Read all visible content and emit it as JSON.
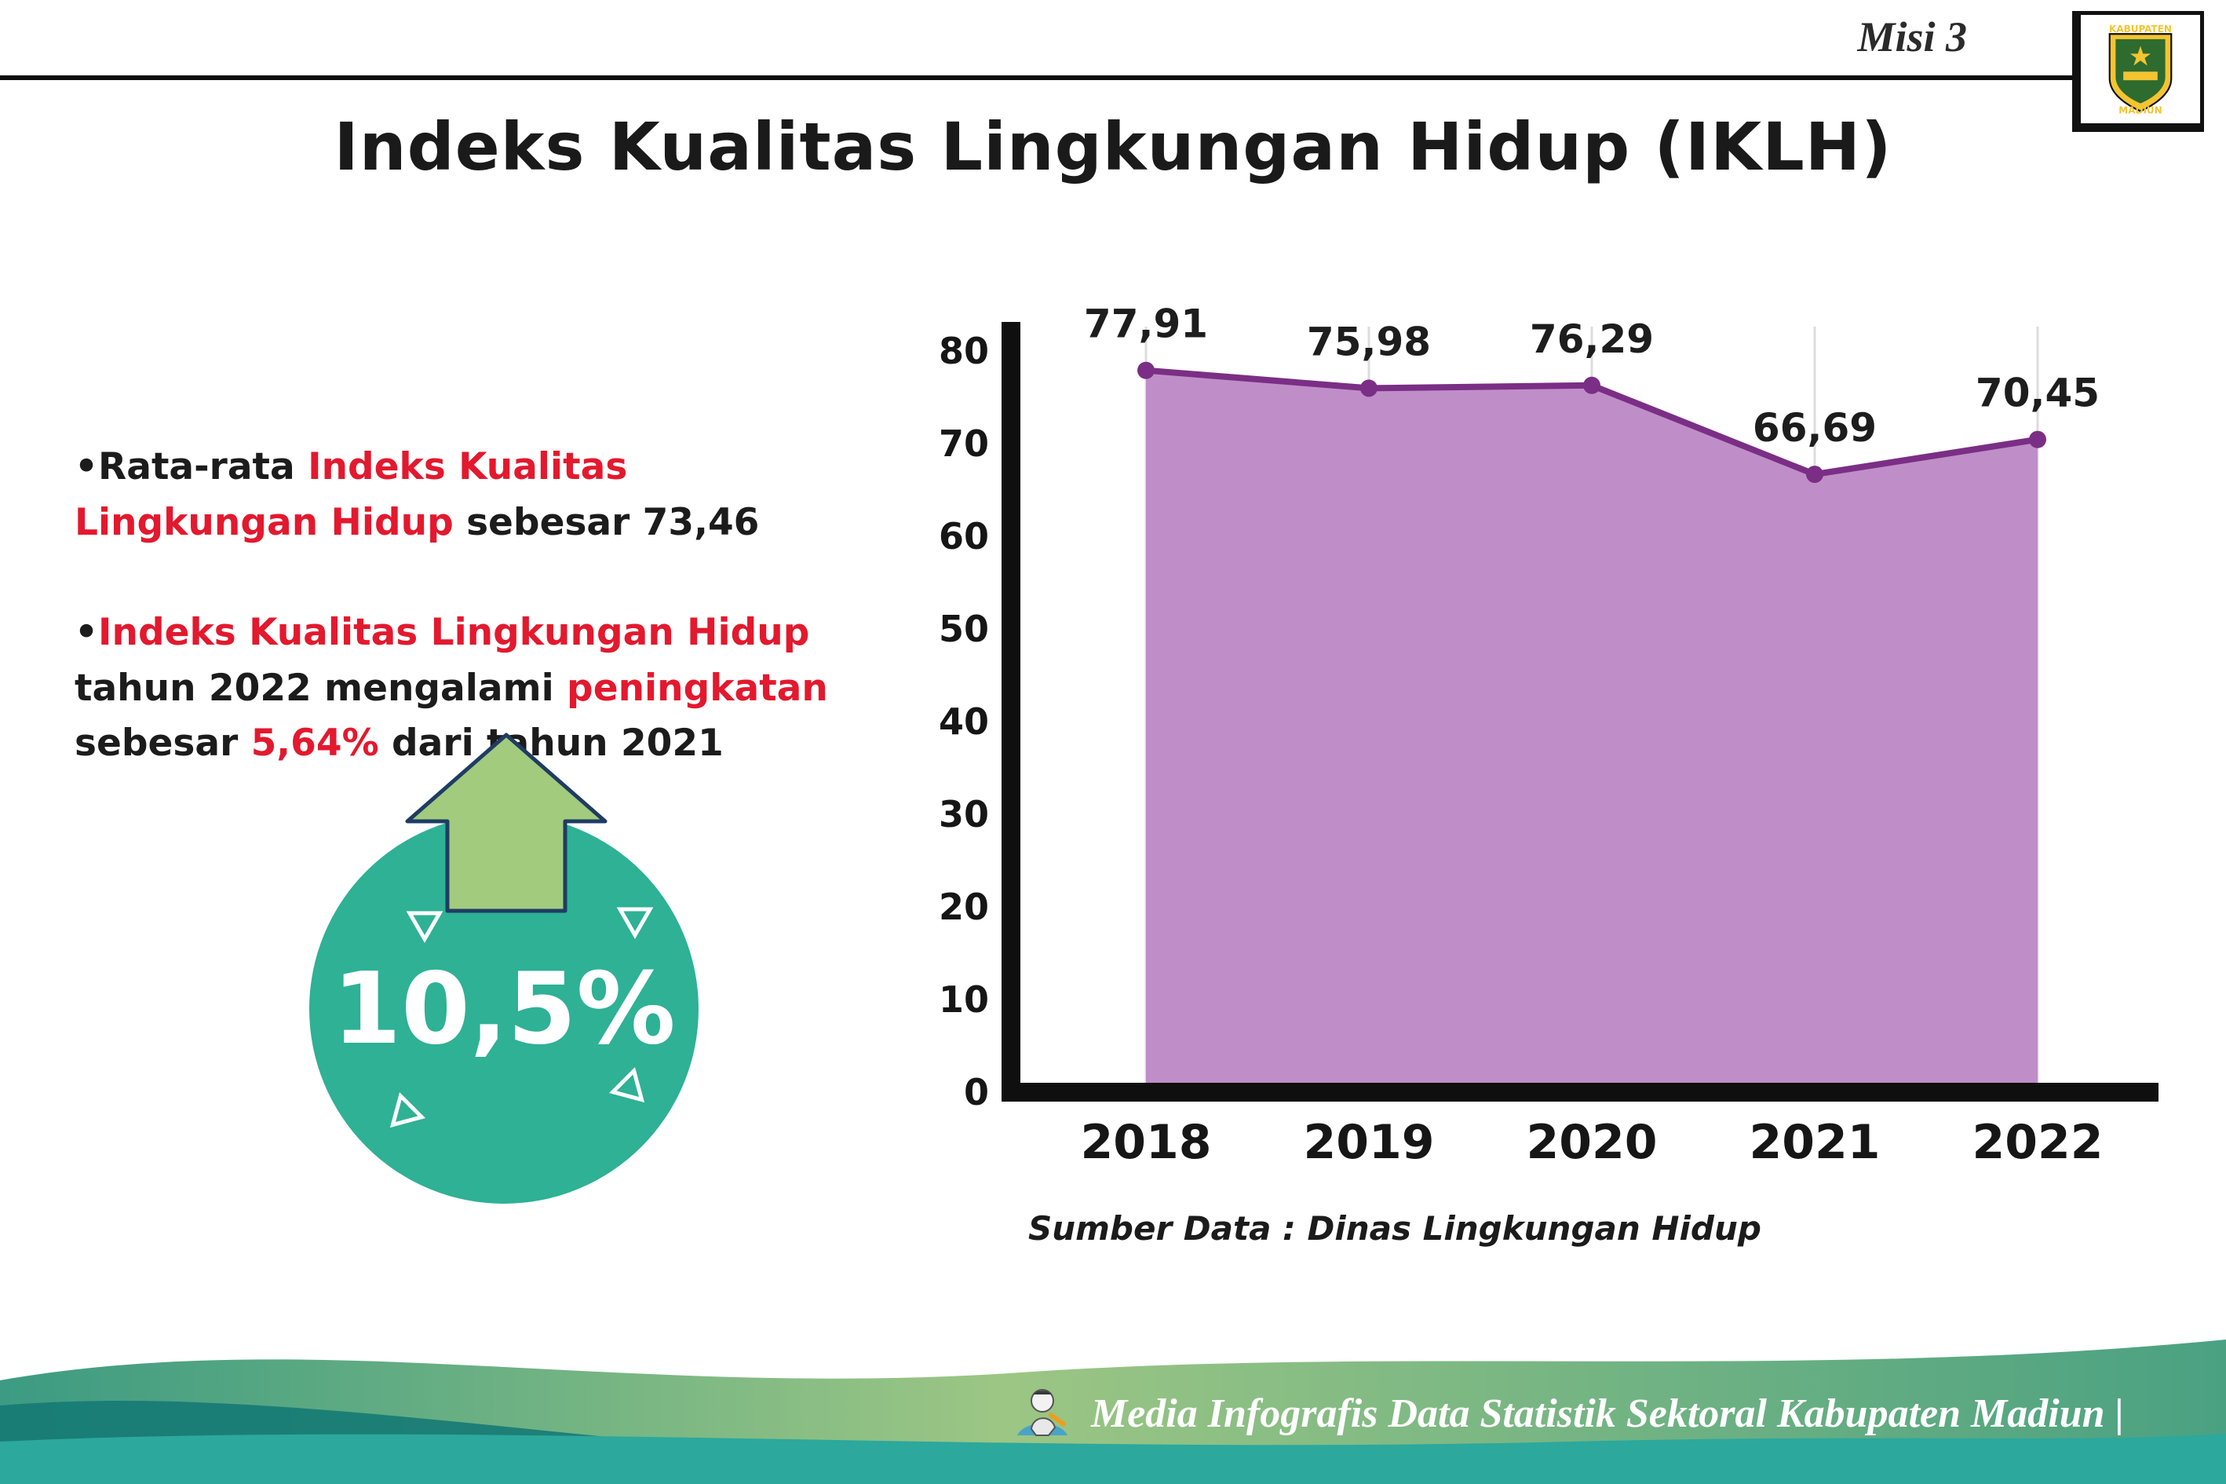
{
  "colors": {
    "accent_red": "#e3192e",
    "badge_teal": "#2eb195",
    "arrow_green": "#a2cb7e",
    "footer_teal": "#2ca89d",
    "footer_dark_teal": "#157a74"
  },
  "header": {
    "misi": "Misi 3",
    "title": "Indeks Kualitas Lingkungan Hidup (IKLH)",
    "logo_text_top": "KABUPATEN",
    "logo_text_bottom": "MADIUN"
  },
  "bullets": {
    "marker": "•",
    "b1": {
      "black1": "Rata-rata ",
      "red1": "Indeks Kualitas Lingkungan Hidup",
      "black2": " sebesar 73,46"
    },
    "b2": {
      "red1": "Indeks Kualitas Lingkungan Hidup",
      "black1": " tahun 2022 mengalami ",
      "red2": "peningkatan",
      "black2": " sebesar ",
      "red3": "5,64%",
      "black3": " dari tahun 2021"
    }
  },
  "badge": {
    "value": "10,5%"
  },
  "chart_data": {
    "type": "area",
    "title": "Indeks Kualitas Lingkungan Hidup (IKLH)",
    "categories": [
      "2018",
      "2019",
      "2020",
      "2021",
      "2022"
    ],
    "values": [
      77.91,
      75.98,
      76.29,
      66.69,
      70.45
    ],
    "point_labels": [
      "77,91",
      "75,98",
      "76,29",
      "66,69",
      "70,45"
    ],
    "ylim": [
      0,
      80
    ],
    "ytick_step": 10,
    "grid": "vertical",
    "legend": "none",
    "fill_color": "#bf8ec8",
    "line_color": "#7b2e85",
    "label_color": "#1d1d1d",
    "source": "Sumber Data : Dinas Lingkungan Hidup"
  },
  "footer": {
    "text": "Media Infografis Data Statistik Sektoral Kabupaten Madiun |"
  }
}
